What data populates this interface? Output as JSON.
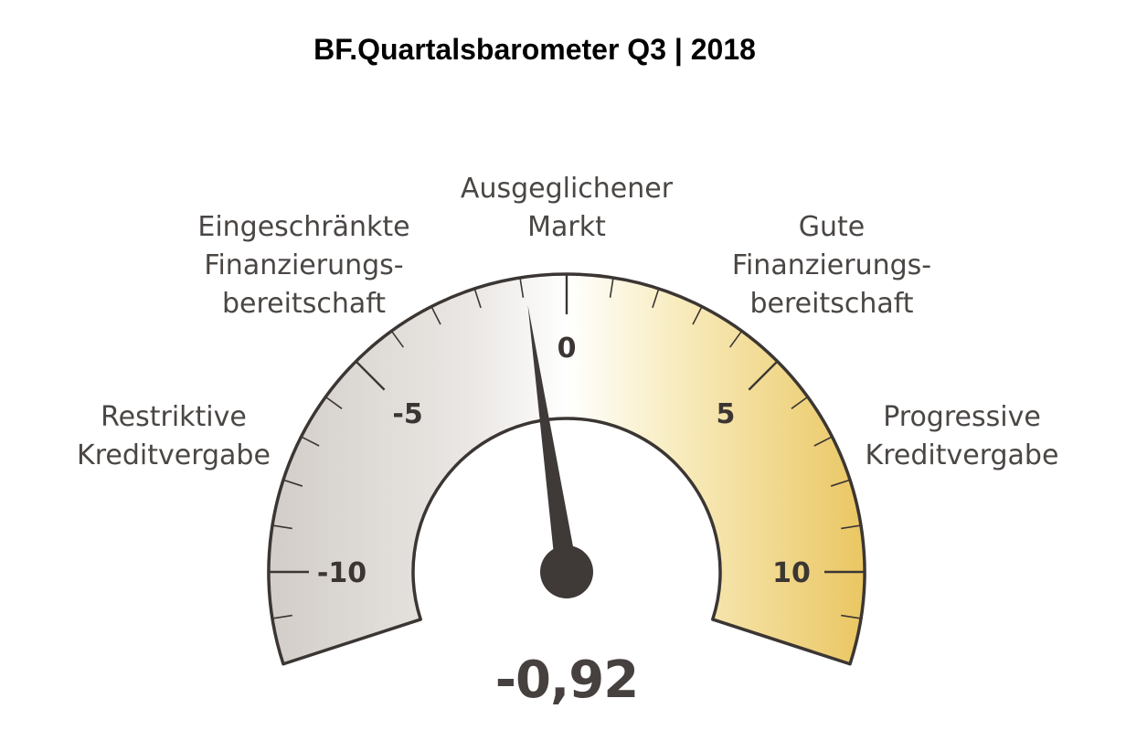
{
  "title": "BF.Quartalsbarometer Q3 | 2018",
  "chart_data": {
    "type": "gauge",
    "title": "BF.Quartalsbarometer Q3 | 2018",
    "range": [
      -12,
      12
    ],
    "major_ticks": [
      -10,
      -5,
      0,
      5,
      10
    ],
    "tick_labels": [
      "-10",
      "-5",
      "0",
      "5",
      "10"
    ],
    "minor_tick_step": 1,
    "value": -0.92,
    "value_label": "-0,92",
    "zones": [
      {
        "line1": "Restriktive",
        "line2": "Kreditvergabe",
        "line3": ""
      },
      {
        "line1": "Eingeschränkte",
        "line2": "Finanzierungs-",
        "line3": "bereitschaft"
      },
      {
        "line1": "Ausgeglichener",
        "line2": "Markt",
        "line3": ""
      },
      {
        "line1": "Gute",
        "line2": "Finanzierungs-",
        "line3": "bereitschaft"
      },
      {
        "line1": "Progressive",
        "line2": "Kreditvergabe",
        "line3": ""
      }
    ],
    "colors": {
      "negative_outer": "#d2cdc8",
      "neutral": "#ffffff",
      "positive_outer": "#eac661",
      "outline": "#3b3633",
      "needle": "#3f3a37",
      "text": "#4a4644"
    }
  }
}
